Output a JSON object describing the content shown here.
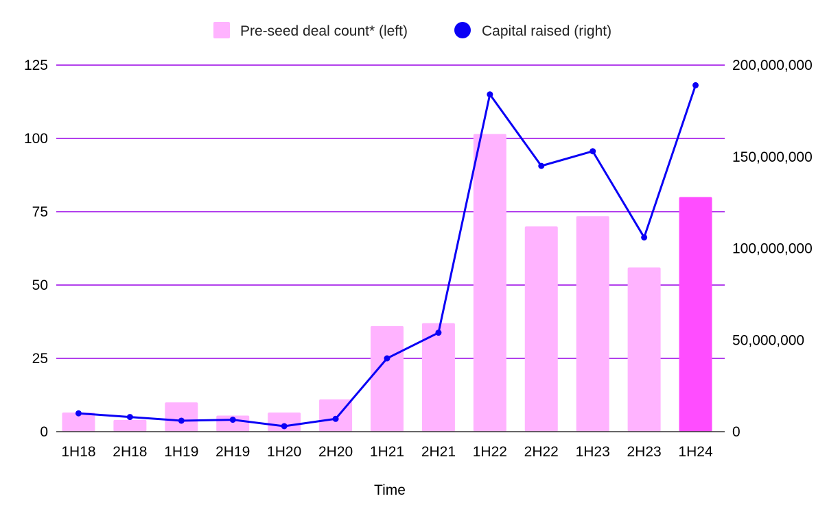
{
  "chart_data": {
    "type": "bar",
    "title": "",
    "xlabel": "Time",
    "ylabel": "",
    "y2label": "",
    "categories": [
      "1H18",
      "2H18",
      "1H19",
      "2H19",
      "1H20",
      "2H20",
      "1H21",
      "2H21",
      "1H22",
      "2H22",
      "1H23",
      "2H23",
      "1H24"
    ],
    "ylim": [
      0,
      125
    ],
    "y_ticks": [
      0,
      25,
      50,
      75,
      100,
      125
    ],
    "y_tick_labels": [
      "0",
      "25",
      "50",
      "75",
      "100",
      "125"
    ],
    "y2lim": [
      0,
      200000000
    ],
    "y2_ticks": [
      0,
      50000000,
      100000000,
      150000000,
      200000000
    ],
    "y2_tick_labels": [
      "0",
      "50,000,000",
      "100,000,000",
      "150,000,000",
      "200,000,000"
    ],
    "grid": true,
    "legend_position": "top",
    "series": [
      {
        "name": "Pre-seed deal count* (left)",
        "type": "bar",
        "axis": "left",
        "color": "#ffb3ff",
        "highlight_color": "#ff4dff",
        "highlight_index": 12,
        "values": [
          6.5,
          4,
          10,
          5.5,
          6.5,
          11,
          36,
          37,
          101.5,
          70,
          73.5,
          56,
          80
        ]
      },
      {
        "name": "Capital raised (right)",
        "type": "line",
        "axis": "right",
        "color": "#0a00f5",
        "values": [
          10000000,
          8000000,
          6000000,
          6500000,
          3000000,
          7000000,
          40000000,
          54000000,
          184000000,
          145000000,
          153000000,
          106000000,
          189000000
        ]
      }
    ],
    "colors": {
      "grid": "#9900e6",
      "baseline": "#333333",
      "bar": "#ffb3ff",
      "bar_highlight": "#ff4dff",
      "line": "#0a00f5"
    }
  }
}
